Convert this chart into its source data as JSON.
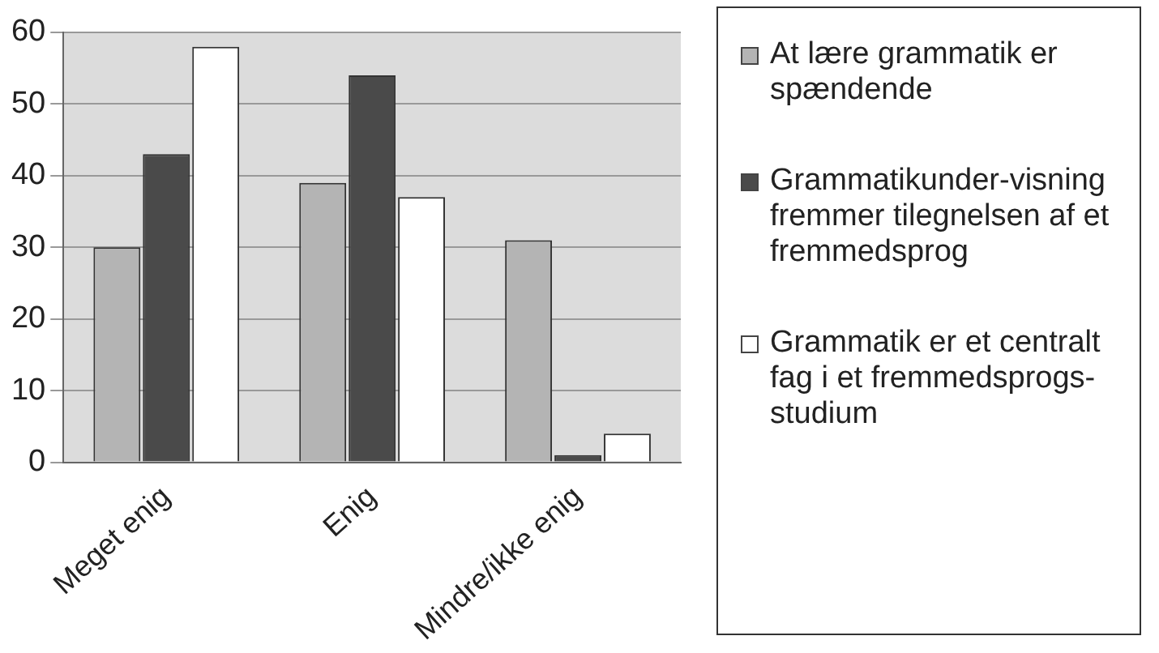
{
  "chart_data": {
    "type": "bar",
    "categories": [
      "Meget enig",
      "Enig",
      "Mindre/ikke enig"
    ],
    "series": [
      {
        "name": "At lære grammatik er spændende",
        "color": "#b4b4b4",
        "values": [
          30,
          39,
          31
        ]
      },
      {
        "name": "Grammatikunder-visning fremmer tilegnelsen af et fremmedsprog",
        "color": "#4a4a4a",
        "values": [
          43,
          54,
          1
        ]
      },
      {
        "name": "Grammatik er et centralt fag i et fremmedsprogs-studium",
        "color": "#ffffff",
        "values": [
          58,
          37,
          4
        ]
      }
    ],
    "ylim": [
      0,
      60
    ],
    "yticks": [
      0,
      10,
      20,
      30,
      40,
      50,
      60
    ],
    "grid": "y",
    "legend": "right"
  }
}
